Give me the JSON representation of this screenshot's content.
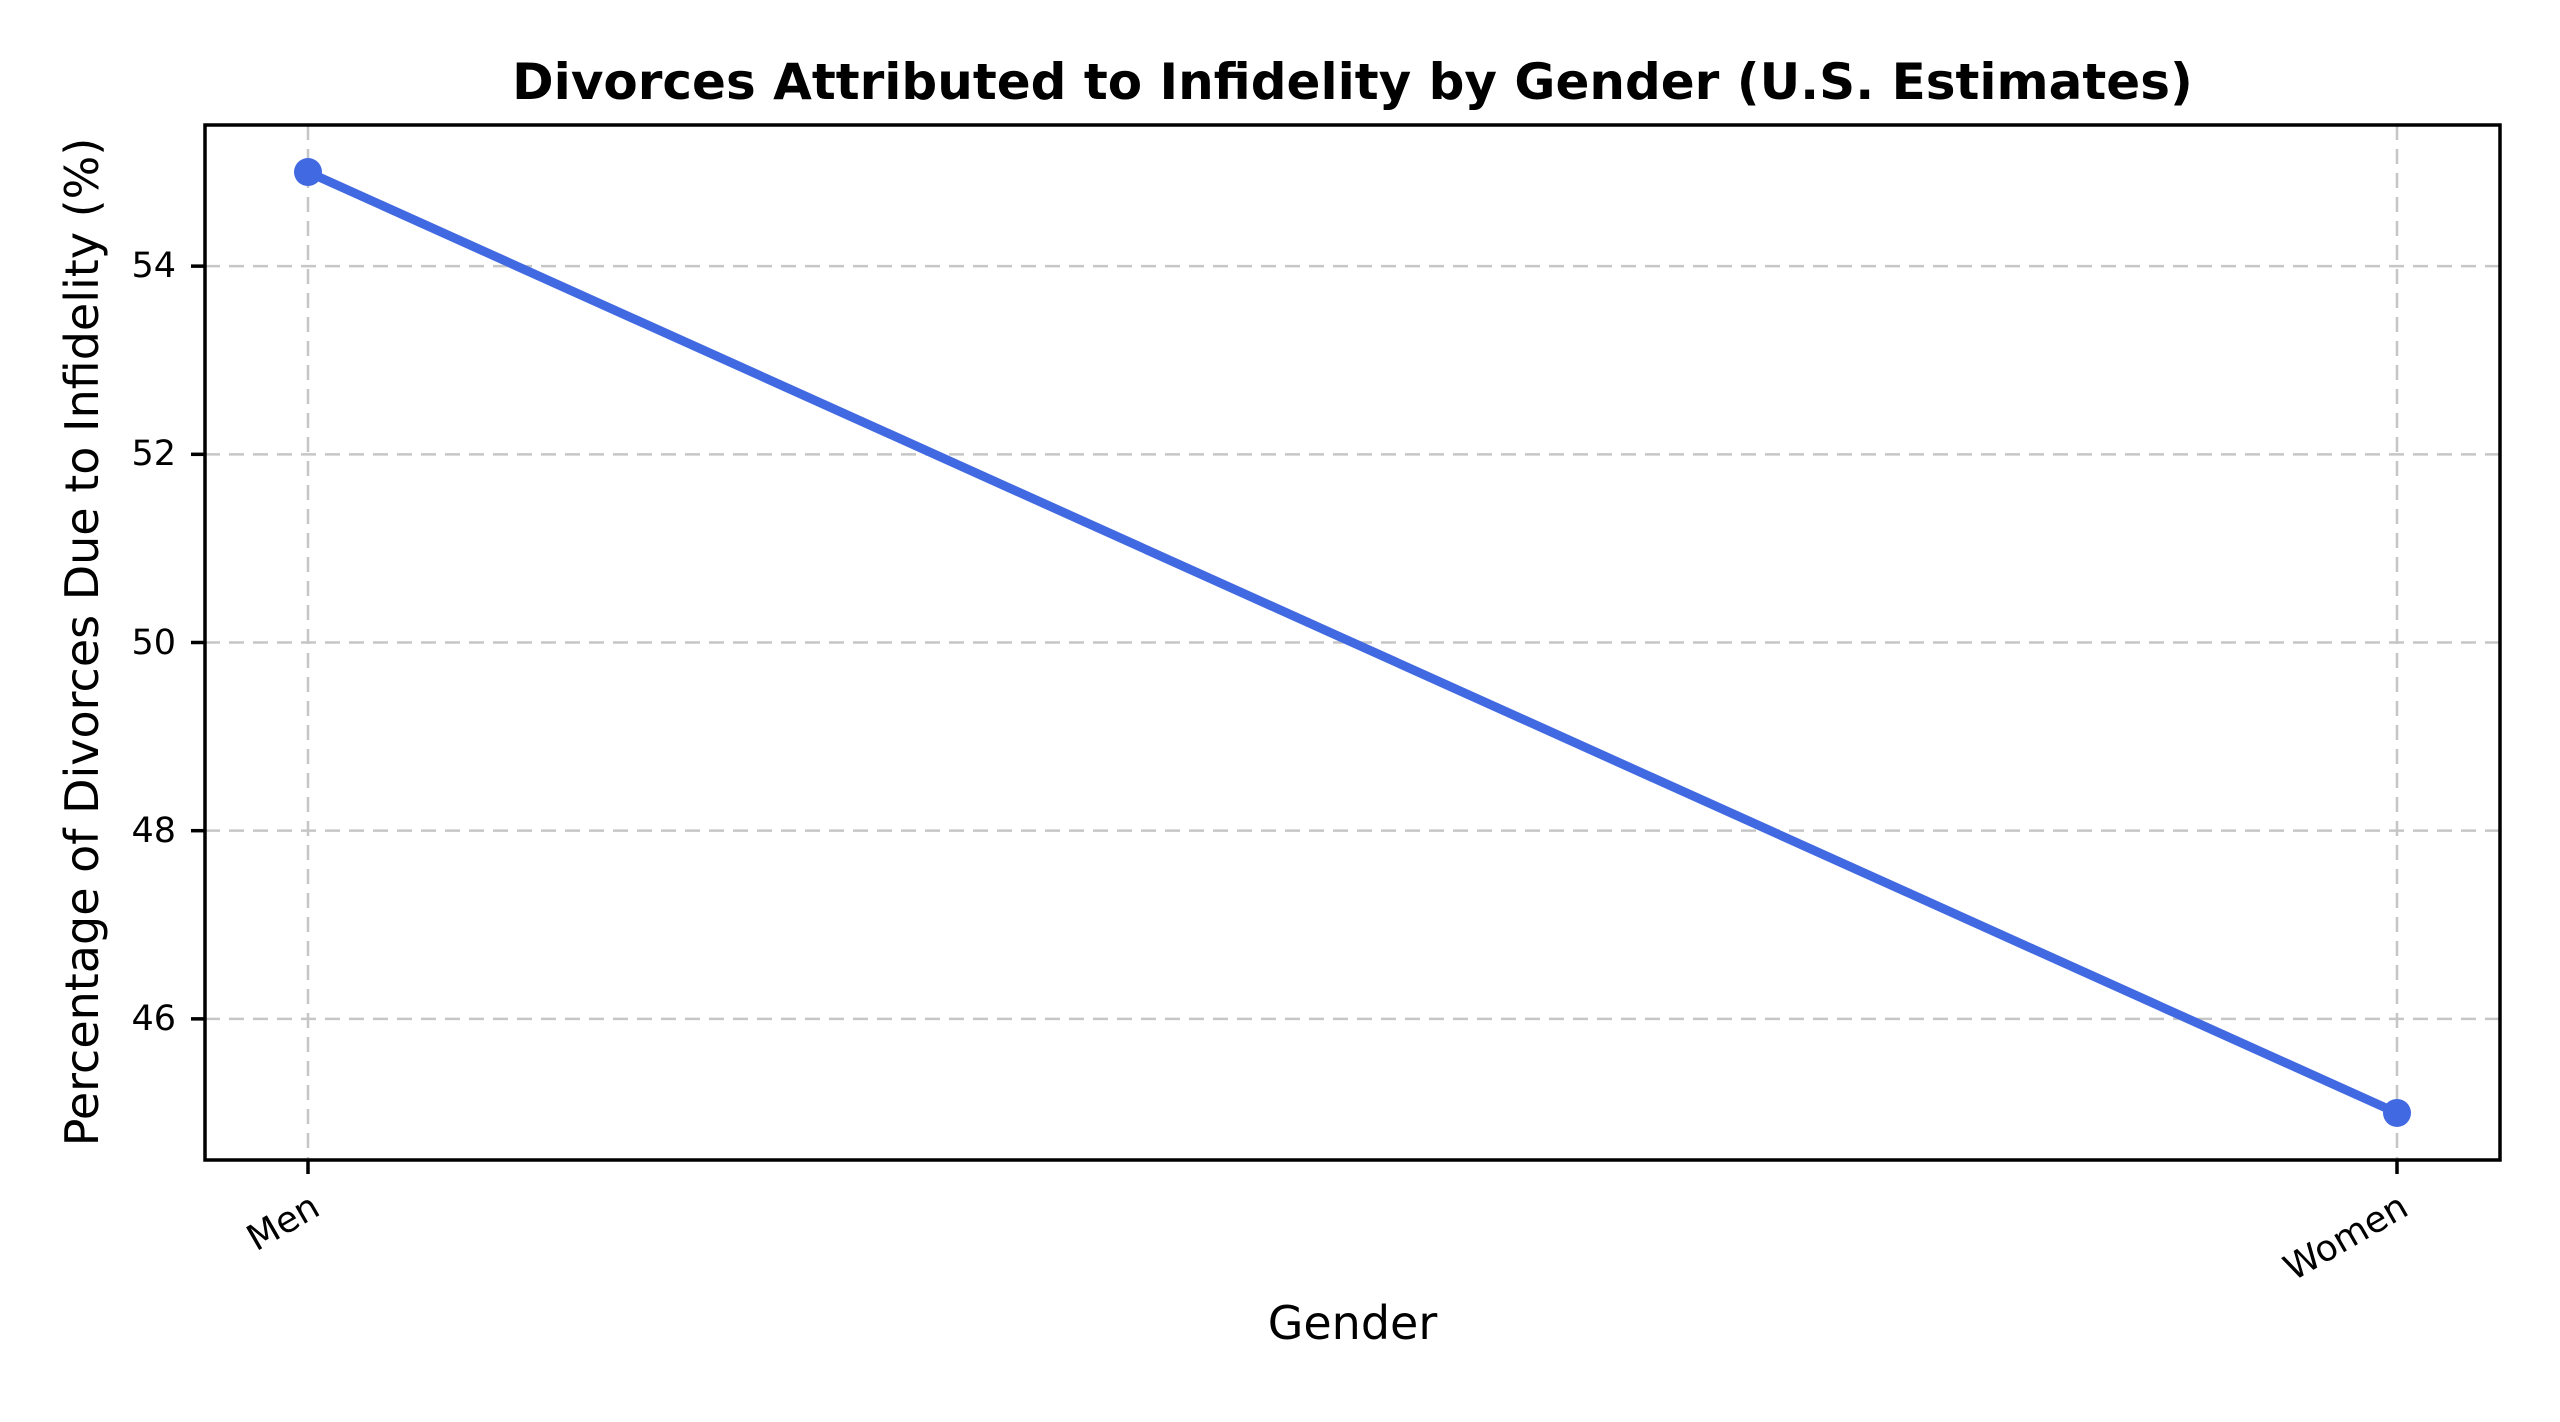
{
  "chart_data": {
    "type": "line",
    "title": "Divorces Attributed to Infidelity by Gender (U.S. Estimates)",
    "xlabel": "Gender",
    "ylabel": "Percentage of Divorces Due to Infidelity (%)",
    "categories": [
      "Men",
      "Women"
    ],
    "values": [
      55,
      45
    ],
    "yticks": [
      46,
      48,
      50,
      52,
      54
    ],
    "ylim": [
      44.5,
      55.5
    ],
    "grid": true,
    "grid_style": "dashed",
    "xtick_rotation_deg": 30,
    "marker": "circle",
    "legend_position": "none"
  },
  "colors": {
    "line": "#4169E1",
    "marker": "#4169E1",
    "grid": "#c6c6c6",
    "spine": "#000000",
    "text": "#000000",
    "background": "#ffffff"
  }
}
